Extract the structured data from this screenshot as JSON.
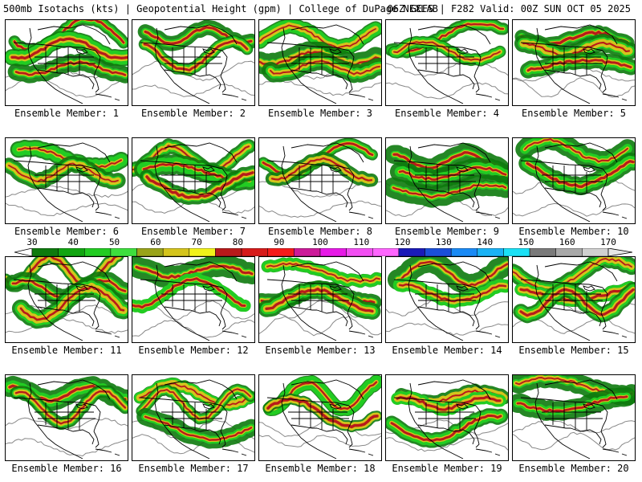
{
  "header": {
    "title": "500mb Isotachs (kts) | Geopotential Height (gpm) | College of DuPage NEXLAB",
    "run_info": "06Z GEFS | F282 Valid: 00Z SUN OCT 05 2025"
  },
  "colorbar": {
    "labels": [
      "30",
      "40",
      "50",
      "60",
      "70",
      "80",
      "90",
      "100",
      "110",
      "120",
      "130",
      "140",
      "150",
      "160",
      "170"
    ],
    "colors": [
      "#0d7a0d",
      "#11a511",
      "#22cc22",
      "#3ddf3d",
      "#99a31a",
      "#d4c41c",
      "#f2f21a",
      "#b81a1a",
      "#d61a1a",
      "#f51a1a",
      "#cc1a99",
      "#e61ae6",
      "#f24ef2",
      "#ff66ff",
      "#1a1ab8",
      "#1a4fd9",
      "#1a8af5",
      "#1ab2f5",
      "#1ae0f5",
      "#7a7a7a",
      "#a8a8a8",
      "#d0d0d0"
    ]
  },
  "members": [
    {
      "label": "Ensemble Member: 1"
    },
    {
      "label": "Ensemble Member: 2"
    },
    {
      "label": "Ensemble Member: 3"
    },
    {
      "label": "Ensemble Member: 4"
    },
    {
      "label": "Ensemble Member: 5"
    },
    {
      "label": "Ensemble Member: 6"
    },
    {
      "label": "Ensemble Member: 7"
    },
    {
      "label": "Ensemble Member: 8"
    },
    {
      "label": "Ensemble Member: 9"
    },
    {
      "label": "Ensemble Member: 10"
    },
    {
      "label": "Ensemble Member: 11"
    },
    {
      "label": "Ensemble Member: 12"
    },
    {
      "label": "Ensemble Member: 13"
    },
    {
      "label": "Ensemble Member: 14"
    },
    {
      "label": "Ensemble Member: 15"
    },
    {
      "label": "Ensemble Member: 16"
    },
    {
      "label": "Ensemble Member: 17"
    },
    {
      "label": "Ensemble Member: 18"
    },
    {
      "label": "Ensemble Member: 19"
    },
    {
      "label": "Ensemble Member: 20"
    }
  ],
  "colors": {
    "jet_core": "#b81a1a",
    "jet_mid": "#d4c41c",
    "jet_outer": "#22cc22",
    "jet_edge": "#0d7a0d",
    "height_contour": "#888888",
    "map_lines": "#000000"
  }
}
